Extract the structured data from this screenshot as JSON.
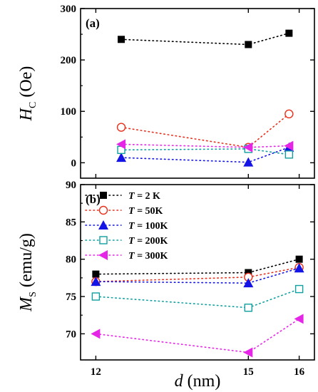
{
  "chart_data": [
    {
      "type": "scatter",
      "panel_label": "(a)",
      "ylabel_symbol": "H",
      "ylabel_sub": "C",
      "ylabel_unit": " (Oe)",
      "ylim": [
        -30,
        300
      ],
      "yticks": [
        0,
        100,
        200,
        300
      ],
      "xlim": [
        11.7,
        16.3
      ],
      "x_positions": [
        "12.5",
        "15",
        "15.8"
      ],
      "xticks_shown": false,
      "line_style": "dotted",
      "series": [
        {
          "name": "T = 2 K",
          "marker": "square-filled",
          "color": "#000000",
          "x": [
            12.5,
            15.0,
            15.8
          ],
          "y": [
            240,
            230,
            252
          ]
        },
        {
          "name": "T = 50K",
          "marker": "circle-open",
          "color": "#e8301c",
          "x": [
            12.5,
            15.0,
            15.8
          ],
          "y": [
            69,
            30,
            95
          ]
        },
        {
          "name": "T = 100K",
          "marker": "triangle-up-filled",
          "color": "#1414e6",
          "x": [
            12.5,
            15.0,
            15.8
          ],
          "y": [
            10,
            1,
            30
          ]
        },
        {
          "name": "T = 200K",
          "marker": "square-open",
          "color": "#11a0a0",
          "x": [
            12.5,
            15.0,
            15.8
          ],
          "y": [
            25,
            27,
            16
          ]
        },
        {
          "name": "T = 300K",
          "marker": "triangle-left-filled",
          "color": "#e626e6",
          "x": [
            12.5,
            15.0,
            15.8
          ],
          "y": [
            36,
            30,
            33
          ]
        }
      ]
    },
    {
      "type": "scatter",
      "panel_label": "(b)",
      "ylabel_symbol": "M",
      "ylabel_sub": "S",
      "ylabel_unit": " (emu/g)",
      "ylim": [
        66.5,
        90
      ],
      "yticks": [
        70,
        75,
        80,
        85,
        90
      ],
      "xlim": [
        11.7,
        16.3
      ],
      "xticks": [
        12,
        15,
        16
      ],
      "xlabel_symbol": "d",
      "xlabel_unit": " (nm)",
      "line_style": "dotted",
      "legend": {
        "placement": "top-left",
        "entries": [
          {
            "prefix": "T",
            "text": " = 2 K"
          },
          {
            "prefix": "T",
            "text": " = 50K"
          },
          {
            "prefix": "T",
            "text": " = 100K"
          },
          {
            "prefix": "T",
            "text": " = 200K"
          },
          {
            "prefix": "T",
            "text": " = 300K"
          }
        ]
      },
      "series": [
        {
          "name": "T = 2 K",
          "marker": "square-filled",
          "color": "#000000",
          "x": [
            12,
            15,
            16
          ],
          "y": [
            78.0,
            78.2,
            80.0
          ]
        },
        {
          "name": "T = 50K",
          "marker": "circle-open",
          "color": "#e8301c",
          "x": [
            12,
            15,
            16
          ],
          "y": [
            77.0,
            77.6,
            78.9
          ]
        },
        {
          "name": "T = 100K",
          "marker": "triangle-up-filled",
          "color": "#1414e6",
          "x": [
            12,
            15,
            16
          ],
          "y": [
            77.0,
            76.8,
            78.8
          ]
        },
        {
          "name": "T = 200K",
          "marker": "square-open",
          "color": "#11a0a0",
          "x": [
            12,
            15,
            16
          ],
          "y": [
            75.0,
            73.5,
            76.0
          ]
        },
        {
          "name": "T = 300K",
          "marker": "triangle-left-filled",
          "color": "#e626e6",
          "x": [
            12,
            15,
            16
          ],
          "y": [
            70.0,
            67.5,
            72.0
          ]
        }
      ]
    }
  ]
}
